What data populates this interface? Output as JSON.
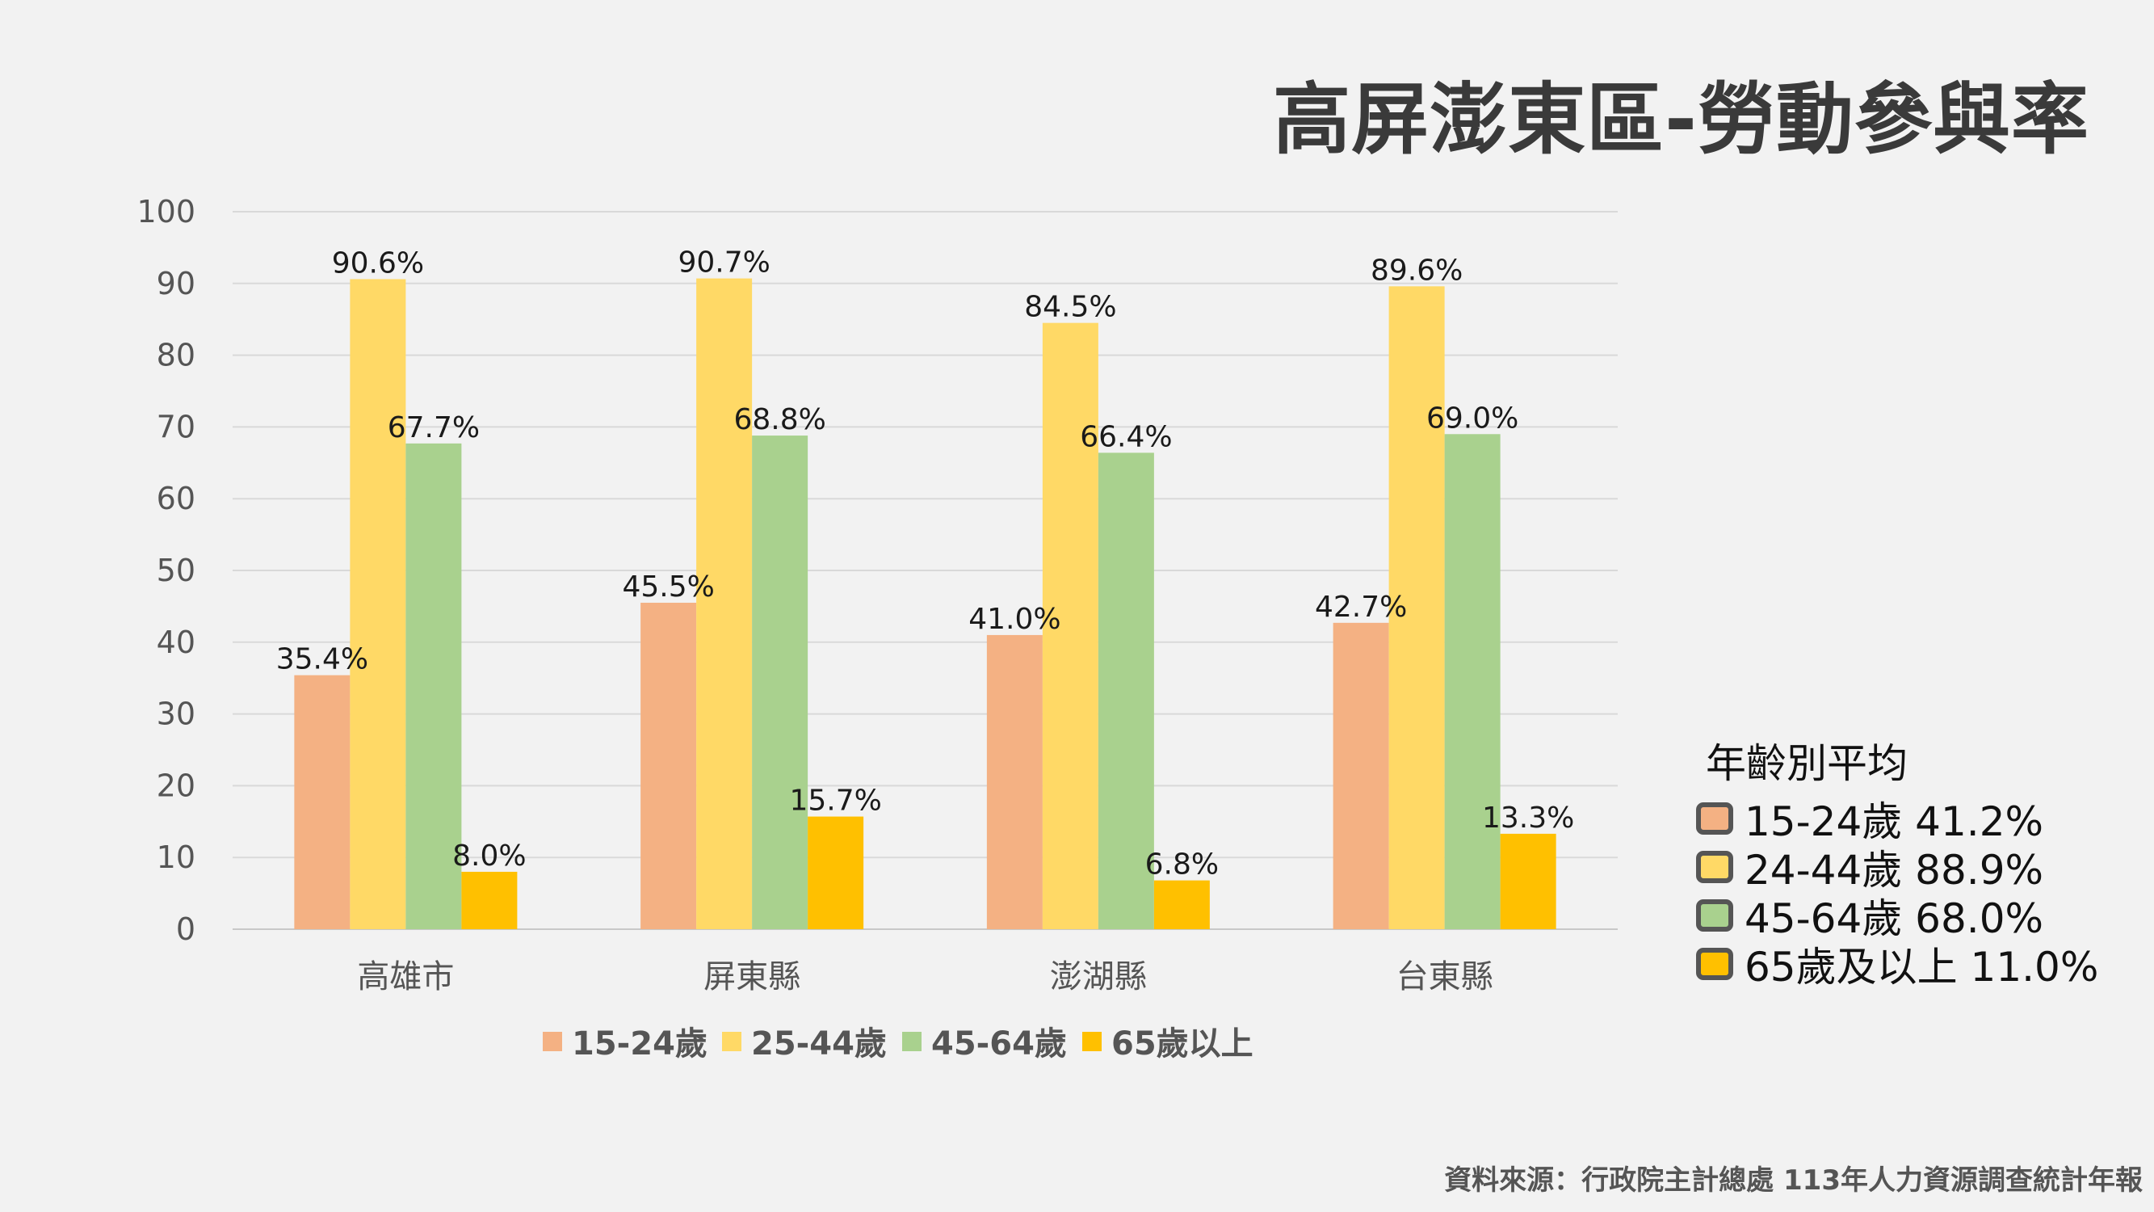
{
  "title": "高屏澎東區-勞動參與率",
  "source": "資料來源：行政院主計總處 113年人力資源調查統計年報",
  "chart_data": {
    "type": "bar",
    "categories": [
      "高雄市",
      "屏東縣",
      "澎湖縣",
      "台東縣"
    ],
    "ylim": [
      0,
      100
    ],
    "yticks": [
      0,
      10,
      20,
      30,
      40,
      50,
      60,
      70,
      80,
      90,
      100
    ],
    "grid": true,
    "legend_position": "bottom",
    "series": [
      {
        "name": "15-24歲",
        "color": "#f4b183",
        "values": [
          35.4,
          45.5,
          41.0,
          42.7
        ],
        "labels": [
          "35.4%",
          "45.5%",
          "41.0%",
          "42.7%"
        ]
      },
      {
        "name": "25-44歲",
        "color": "#ffd966",
        "values": [
          90.6,
          90.7,
          84.5,
          89.6
        ],
        "labels": [
          "90.6%",
          "90.7%",
          "84.5%",
          "89.6%"
        ]
      },
      {
        "name": "45-64歲",
        "color": "#a9d18e",
        "values": [
          67.7,
          68.8,
          66.4,
          69.0
        ],
        "labels": [
          "67.7%",
          "68.8%",
          "66.4%",
          "69.0%"
        ]
      },
      {
        "name": "65歲以上",
        "color": "#ffc000",
        "values": [
          8.0,
          15.7,
          6.8,
          13.3
        ],
        "labels": [
          "8.0%",
          "15.7%",
          "6.8%",
          "13.3%"
        ]
      }
    ]
  },
  "averages": {
    "title": "年齡別平均",
    "items": [
      {
        "label": "15-24歲 41.2%",
        "color": "#f4b183"
      },
      {
        "label": "24-44歲 88.9%",
        "color": "#ffd966"
      },
      {
        "label": "45-64歲 68.0%",
        "color": "#a9d18e"
      },
      {
        "label": "65歲及以上 11.0%",
        "color": "#ffc000"
      }
    ]
  }
}
